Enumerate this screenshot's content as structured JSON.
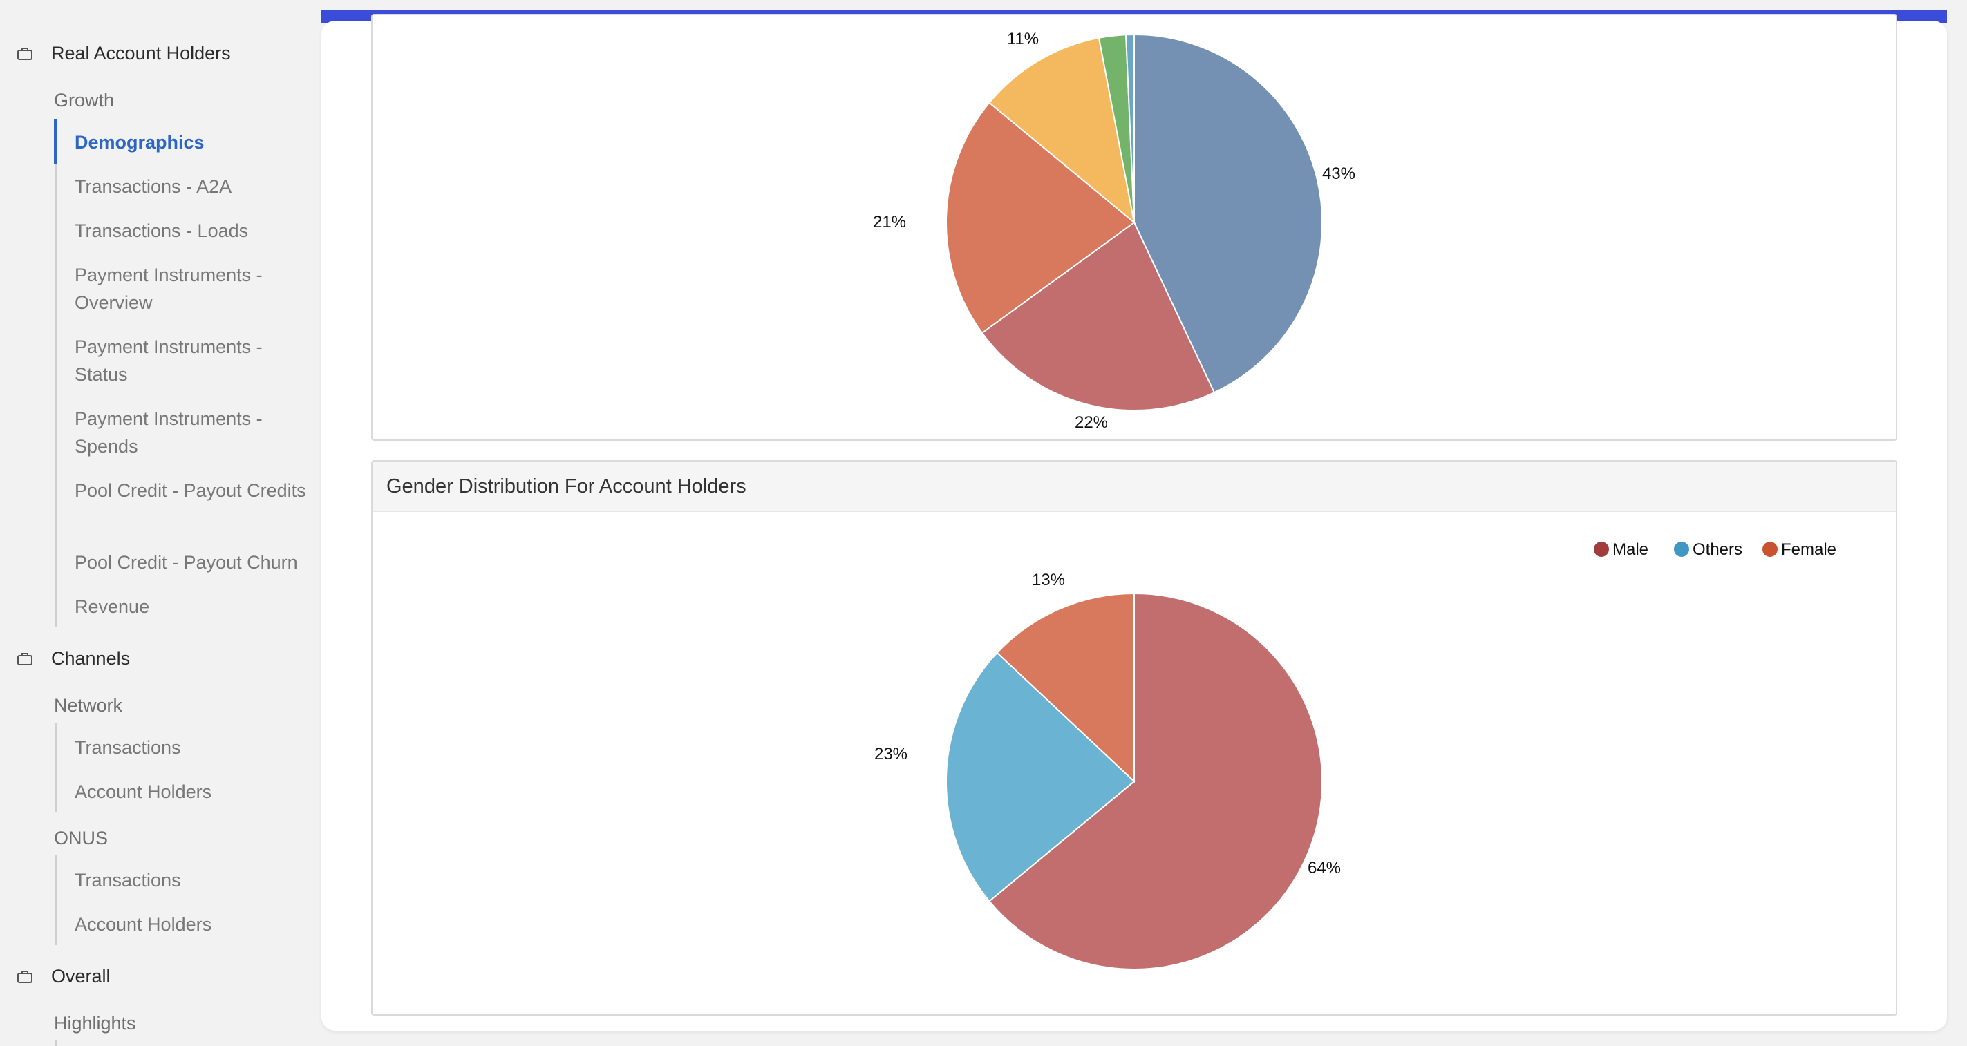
{
  "sidebar": {
    "sections": [
      {
        "label": "Real Account Holders"
      },
      {
        "label": "Channels"
      },
      {
        "label": "Overall"
      }
    ],
    "groups": [
      "Growth",
      "Network",
      "ONUS",
      "Highlights"
    ],
    "growth_items": [
      "Demographics",
      "Transactions - A2A",
      "Transactions - Loads",
      "Payment Instruments - Overview",
      "Payment Instruments - Status",
      "Payment Instruments - Spends",
      "Pool Credit - Payout Credits",
      "Pool Credit - Payout Churn",
      "Revenue"
    ],
    "network_items": [
      "Transactions",
      "Account Holders"
    ],
    "onus_items": [
      "Transactions",
      "Account Holders"
    ],
    "active_item": "Demographics"
  },
  "charts": {
    "top": {
      "labels": {
        "a": "43%",
        "b": "22%",
        "c": "21%",
        "d": "11%"
      }
    },
    "gender": {
      "title": "Gender Distribution For Account Holders",
      "legend": [
        "Male",
        "Others",
        "Female"
      ]
    }
  },
  "chart_data": [
    {
      "type": "pie",
      "title": "",
      "slices": [
        {
          "label": "43%",
          "value": 43,
          "color": "#7491b3"
        },
        {
          "label": "22%",
          "value": 22,
          "color": "#c26e6e"
        },
        {
          "label": "21%",
          "value": 21,
          "color": "#d8785c"
        },
        {
          "label": "11%",
          "value": 11,
          "color": "#f4b95f"
        },
        {
          "value": 2.3,
          "color": "#74b36a"
        },
        {
          "value": 0.7,
          "color": "#6aa6c6"
        }
      ]
    },
    {
      "type": "pie",
      "title": "Gender Distribution For Account Holders",
      "legend_position": "top-right",
      "legend": [
        {
          "name": "Male",
          "color": "#a23b3b"
        },
        {
          "name": "Others",
          "color": "#3f97c4"
        },
        {
          "name": "Female",
          "color": "#c9532f"
        }
      ],
      "slices": [
        {
          "name": "Male",
          "label": "64%",
          "value": 64,
          "color": "#c26e6e"
        },
        {
          "name": "Others",
          "label": "23%",
          "value": 23,
          "color": "#6ab3d3"
        },
        {
          "name": "Female",
          "label": "13%",
          "value": 13,
          "color": "#d8785c"
        }
      ]
    }
  ]
}
